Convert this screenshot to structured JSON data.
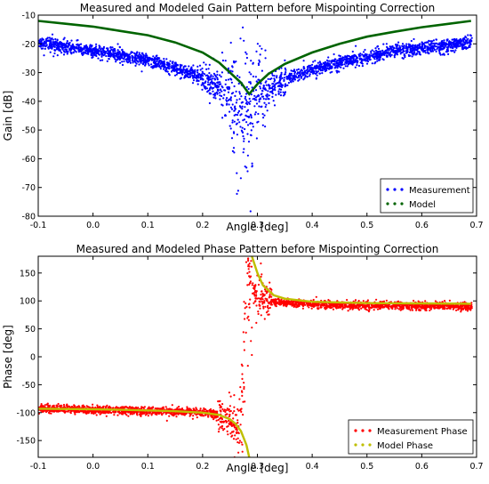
{
  "chart_data": [
    {
      "type": "scatter",
      "title": "Measured and Modeled Gain Pattern before Mispointing Correction",
      "xlabel": "Angle [deg]",
      "ylabel": "Gain [dB]",
      "xlim": [
        -0.1,
        0.7
      ],
      "ylim": [
        -80,
        -10
      ],
      "xticks": [
        "-0.1",
        "0.0",
        "0.1",
        "0.2",
        "0.3",
        "0.4",
        "0.5",
        "0.6",
        "0.7"
      ],
      "yticks": [
        "-10",
        "-20",
        "-30",
        "-40",
        "-50",
        "-60",
        "-70",
        "-80"
      ],
      "grid": false,
      "legend_position": "bottom-right",
      "series": [
        {
          "name": "Measurement",
          "kind": "scatter",
          "color": "#0000ff",
          "x": [
            -0.1,
            -0.05,
            0.0,
            0.05,
            0.1,
            0.15,
            0.2,
            0.22,
            0.24,
            0.26,
            0.27,
            0.28,
            0.29,
            0.3,
            0.32,
            0.35,
            0.4,
            0.45,
            0.5,
            0.55,
            0.6,
            0.65,
            0.69
          ],
          "y": [
            -19.5,
            -21,
            -22.5,
            -24,
            -26,
            -28.5,
            -31.5,
            -33.5,
            -36.5,
            -41,
            -46,
            -43,
            -40,
            -38,
            -35.5,
            -32.5,
            -29,
            -26.5,
            -24.5,
            -22.5,
            -21.5,
            -20.5,
            -19.5
          ]
        },
        {
          "name": "Model",
          "kind": "line",
          "color": "#006400",
          "x": [
            -0.1,
            -0.05,
            0.0,
            0.05,
            0.1,
            0.15,
            0.2,
            0.23,
            0.25,
            0.27,
            0.285,
            0.3,
            0.32,
            0.35,
            0.4,
            0.45,
            0.5,
            0.55,
            0.6,
            0.65,
            0.69
          ],
          "y": [
            -12,
            -13,
            -14,
            -15.5,
            -17,
            -19.5,
            -23,
            -26.5,
            -30,
            -33.5,
            -37.5,
            -34,
            -30.5,
            -27,
            -23,
            -20,
            -17.5,
            -15.8,
            -14.2,
            -13,
            -12
          ]
        }
      ]
    },
    {
      "type": "scatter",
      "title": "Measured and Modeled Phase Pattern before Mispointing Correction",
      "xlabel": "Angle [deg]",
      "ylabel": "Phase [deg]",
      "xlim": [
        -0.1,
        0.7
      ],
      "ylim": [
        -180,
        180
      ],
      "xticks": [
        "-0.1",
        "0.0",
        "0.1",
        "0.2",
        "0.3",
        "0.4",
        "0.5",
        "0.6",
        "0.7"
      ],
      "yticks": [
        "150",
        "100",
        "50",
        "0",
        "-50",
        "-100",
        "-150"
      ],
      "grid": false,
      "legend_position": "bottom-right",
      "series": [
        {
          "name": "Measurement Phase",
          "kind": "scatter",
          "color": "#ff0000",
          "x": [
            -0.1,
            -0.05,
            0.0,
            0.05,
            0.1,
            0.15,
            0.2,
            0.22,
            0.24,
            0.26,
            0.27,
            0.28,
            0.29,
            0.3,
            0.32,
            0.35,
            0.4,
            0.45,
            0.5,
            0.55,
            0.6,
            0.65,
            0.69
          ],
          "y": [
            -93,
            -94,
            -95,
            -96,
            -97,
            -98,
            -100,
            -103,
            -110,
            -125,
            -150,
            160,
            125,
            110,
            100,
            96,
            94,
            93,
            92,
            92,
            91,
            91,
            90
          ]
        },
        {
          "name": "Model Phase",
          "kind": "line",
          "color": "#bfbf00",
          "x": [
            -0.1,
            -0.05,
            0.0,
            0.05,
            0.1,
            0.15,
            0.2,
            0.23,
            0.25,
            0.26,
            0.27,
            0.28,
            0.285,
            0.29,
            0.3,
            0.31,
            0.33,
            0.35,
            0.4,
            0.5,
            0.6,
            0.69
          ],
          "y": [
            -93,
            -93.5,
            -94,
            -95,
            -96,
            -97.5,
            -100,
            -104,
            -112,
            -120,
            -133,
            -158,
            -180,
            180,
            150,
            128,
            110,
            104,
            98.5,
            96,
            95.5,
            95
          ]
        }
      ]
    }
  ]
}
